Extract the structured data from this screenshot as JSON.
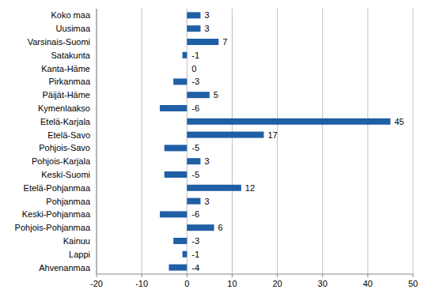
{
  "chart_data": {
    "type": "bar",
    "orientation": "horizontal",
    "categories": [
      "Koko maa",
      "Uusimaa",
      "Varsinais-Suomi",
      "Satakunta",
      "Kanta-Häme",
      "Pirkanmaa",
      "Päijät-Häme",
      "Kymenlaakso",
      "Etelä-Karjala",
      "Etelä-Savo",
      "Pohjois-Savo",
      "Pohjois-Karjala",
      "Keski-Suomi",
      "Etelä-Pohjanmaa",
      "Pohjanmaa",
      "Keski-Pohjanmaa",
      "Pohjois-Pohjanmaa",
      "Kainuu",
      "Lappi",
      "Ahvenanmaa"
    ],
    "values": [
      3,
      3,
      7,
      -1,
      0,
      -3,
      5,
      -6,
      45,
      17,
      -5,
      3,
      -5,
      12,
      3,
      -6,
      6,
      -3,
      -1,
      -4
    ],
    "color": "#1f5fa6",
    "xlim": [
      -20,
      50
    ],
    "xticks": [
      -20,
      -10,
      0,
      10,
      20,
      30,
      40,
      50
    ],
    "grid": true,
    "data_labels": true
  }
}
